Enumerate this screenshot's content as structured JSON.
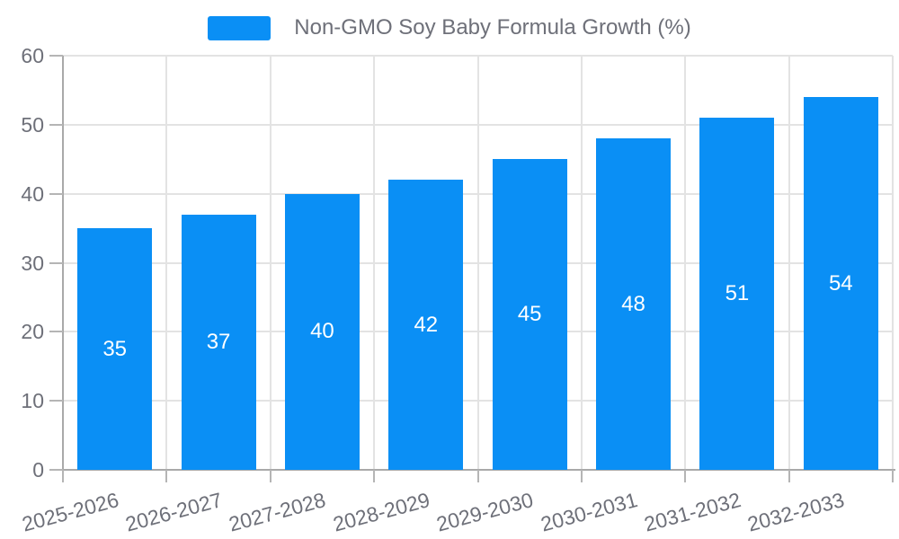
{
  "legend": {
    "label": "Non-GMO Soy Baby Formula Growth (%)"
  },
  "colors": {
    "bar": "#0A8FF5",
    "grid": "#E3E3E3",
    "axis": "#A9A9A9",
    "tick": "#B5B5B5",
    "axis_label": "#6E7079",
    "value_label": "#FFFFFF",
    "background": "#FFFFFF"
  },
  "chart_data": {
    "type": "bar",
    "title": "Non-GMO Soy Baby Formula Growth (%)",
    "categories": [
      "2025-2026",
      "2026-2027",
      "2027-2028",
      "2028-2029",
      "2029-2030",
      "2030-2031",
      "2031-2032",
      "2032-2033"
    ],
    "values": [
      35,
      37,
      40,
      42,
      45,
      48,
      51,
      54
    ],
    "series_name": "Non-GMO Soy Baby Formula Growth (%)",
    "xlabel": "",
    "ylabel": "",
    "ylim": [
      0,
      60
    ],
    "ytick_step": 10,
    "yticks": [
      0,
      10,
      20,
      30,
      40,
      50,
      60
    ],
    "grid": "horizontal and vertical light gray gridlines",
    "legend_position": "top center",
    "value_labels_position": "inside center, white",
    "xtick_rotation_deg": -15,
    "bar_color": "#0A8FF5"
  }
}
